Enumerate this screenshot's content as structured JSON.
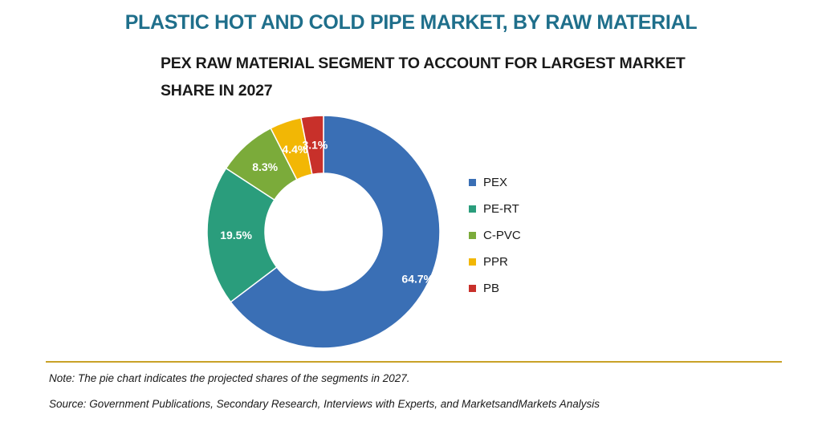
{
  "title": "PLASTIC HOT AND COLD PIPE MARKET, BY RAW MATERIAL",
  "subtitle_line1": "PEX RAW MATERIAL SEGMENT TO ACCOUNT FOR LARGEST MARKET",
  "subtitle_line2": "SHARE IN 2027",
  "note": "Note: The pie chart indicates the projected shares of the segments in 2027.",
  "source": "Source: Government Publications, Secondary Research, Interviews with Experts, and MarketsandMarkets Analysis",
  "chart_data": {
    "type": "pie",
    "donut": true,
    "categories": [
      "PEX",
      "PE-RT",
      "C-PVC",
      "PPR",
      "PB"
    ],
    "values": [
      64.7,
      19.5,
      8.3,
      4.4,
      3.1
    ],
    "labels": [
      "64.7%",
      "19.5%",
      "8.3%",
      "4.4%",
      "3.1%"
    ],
    "colors": [
      "#3a6fb5",
      "#2a9d7c",
      "#7bab3a",
      "#f2b705",
      "#c8302a"
    ],
    "label_colors": [
      "#ffffff",
      "#ffffff",
      "#ffffff",
      "#ffffff",
      "#ffffff"
    ],
    "legend_position": "right"
  }
}
